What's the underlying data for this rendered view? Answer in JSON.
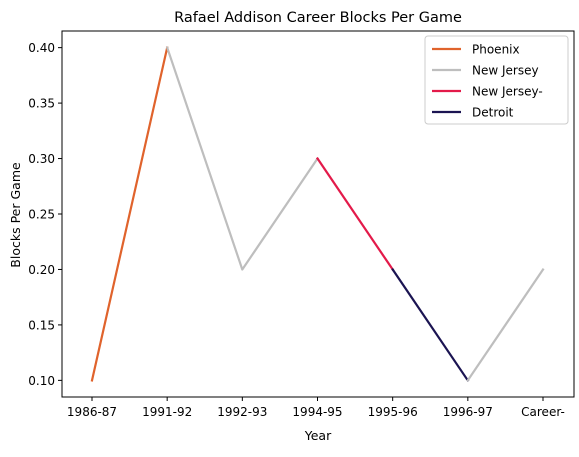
{
  "chart_data": {
    "type": "line",
    "title": "Rafael Addison Career Blocks Per Game",
    "xlabel": "Year",
    "ylabel": "Blocks Per Game",
    "categories": [
      "1986-87",
      "1991-92",
      "1992-93",
      "1994-95",
      "1995-96",
      "1996-97",
      "Career-"
    ],
    "ylim": [
      0.085,
      0.415
    ],
    "yticks": [
      0.1,
      0.15,
      0.2,
      0.25,
      0.3,
      0.35,
      0.4
    ],
    "legend_position": "top-right",
    "grid": false,
    "series": [
      {
        "name": "Phoenix",
        "color": "#e0632c",
        "points": [
          {
            "x": "1986-87",
            "y": 0.1
          },
          {
            "x": "1991-92",
            "y": 0.4
          }
        ]
      },
      {
        "name": "New Jersey",
        "color": "#bebebe",
        "points": [
          {
            "x": "1991-92",
            "y": 0.4
          },
          {
            "x": "1992-93",
            "y": 0.2
          },
          {
            "x": "1994-95",
            "y": 0.3
          }
        ]
      },
      {
        "name": "New Jersey-",
        "color": "#e31a4a",
        "points": [
          {
            "x": "1994-95",
            "y": 0.3
          },
          {
            "x": "1995-96",
            "y": 0.2
          }
        ]
      },
      {
        "name": "Detroit",
        "color": "#1b1452",
        "points": [
          {
            "x": "1995-96",
            "y": 0.2
          },
          {
            "x": "1996-97",
            "y": 0.1
          }
        ]
      },
      {
        "name": "",
        "color": "#bebebe",
        "points": [
          {
            "x": "1996-97",
            "y": 0.1
          },
          {
            "x": "Career-",
            "y": 0.2
          }
        ]
      }
    ]
  }
}
